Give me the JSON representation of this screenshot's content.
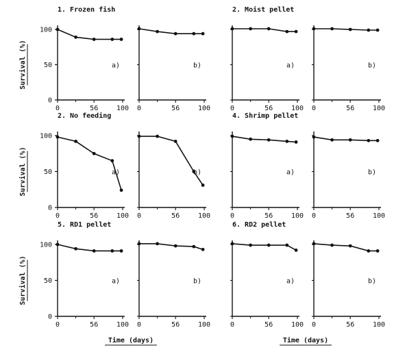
{
  "chart_data": [
    {
      "type": "line",
      "title": "1. Frozen fish",
      "ylabel": "Survival (%)",
      "xlabel": "",
      "xlim": [
        0,
        100
      ],
      "ylim": [
        0,
        100
      ],
      "xticks": [
        "0",
        "56",
        "100"
      ],
      "yticks": [
        "0",
        "50",
        "100"
      ],
      "panels": [
        {
          "label": "a)",
          "x": [
            0,
            28,
            56,
            84,
            98
          ],
          "y": [
            100,
            89,
            86,
            86,
            86
          ]
        },
        {
          "label": "b)",
          "x": [
            0,
            28,
            56,
            84,
            98
          ],
          "y": [
            101,
            97,
            94,
            94,
            94
          ]
        }
      ]
    },
    {
      "type": "line",
      "title": "2. Moist pellet",
      "ylabel": "",
      "xlabel": "",
      "xlim": [
        0,
        100
      ],
      "ylim": [
        0,
        100
      ],
      "xticks": [
        "0",
        "56",
        "100"
      ],
      "yticks": [],
      "panels": [
        {
          "label": "a)",
          "x": [
            0,
            28,
            56,
            84,
            98
          ],
          "y": [
            101,
            101,
            101,
            97,
            97
          ]
        },
        {
          "label": "b)",
          "x": [
            0,
            28,
            56,
            84,
            98
          ],
          "y": [
            101,
            101,
            100,
            99,
            99
          ]
        }
      ]
    },
    {
      "type": "line",
      "title": "2. No feeding",
      "ylabel": "Survival (%)",
      "xlabel": "",
      "xlim": [
        0,
        100
      ],
      "ylim": [
        0,
        100
      ],
      "xticks": [
        "0",
        "56",
        "100"
      ],
      "yticks": [
        "0",
        "50",
        "100"
      ],
      "panels": [
        {
          "label": "a)",
          "x": [
            0,
            28,
            56,
            84,
            98
          ],
          "y": [
            98,
            92,
            75,
            65,
            24
          ]
        },
        {
          "label": "b)",
          "x": [
            0,
            28,
            56,
            84,
            98
          ],
          "y": [
            99,
            99,
            92,
            50,
            31
          ]
        }
      ]
    },
    {
      "type": "line",
      "title": "4. Shrimp pellet",
      "ylabel": "",
      "xlabel": "",
      "xlim": [
        0,
        100
      ],
      "ylim": [
        0,
        100
      ],
      "xticks": [
        "0",
        "56",
        "100"
      ],
      "yticks": [],
      "panels": [
        {
          "label": "a)",
          "x": [
            0,
            28,
            56,
            84,
            98
          ],
          "y": [
            99,
            95,
            94,
            92,
            91
          ]
        },
        {
          "label": "b)",
          "x": [
            0,
            28,
            56,
            84,
            98
          ],
          "y": [
            98,
            94,
            94,
            93,
            93
          ]
        }
      ]
    },
    {
      "type": "line",
      "title": "5. RD1 pellet",
      "ylabel": "Survival (%)",
      "xlabel": "Time (days)",
      "xlim": [
        0,
        100
      ],
      "ylim": [
        0,
        100
      ],
      "xticks": [
        "0",
        "56",
        "100"
      ],
      "yticks": [
        "0",
        "50",
        "100"
      ],
      "panels": [
        {
          "label": "a)",
          "x": [
            0,
            28,
            56,
            84,
            98
          ],
          "y": [
            100,
            94,
            91,
            91,
            91
          ]
        },
        {
          "label": "b)",
          "x": [
            0,
            28,
            56,
            84,
            98
          ],
          "y": [
            101,
            101,
            98,
            97,
            93
          ]
        }
      ]
    },
    {
      "type": "line",
      "title": "6. RD2 pellet",
      "ylabel": "",
      "xlabel": "Time (days)",
      "xlim": [
        0,
        100
      ],
      "ylim": [
        0,
        100
      ],
      "xticks": [
        "0",
        "56",
        "100"
      ],
      "yticks": [],
      "panels": [
        {
          "label": "a)",
          "x": [
            0,
            28,
            56,
            84,
            98
          ],
          "y": [
            101,
            99,
            99,
            99,
            92
          ]
        },
        {
          "label": "b)",
          "x": [
            0,
            28,
            56,
            84,
            98
          ],
          "y": [
            101,
            99,
            98,
            91,
            91
          ]
        }
      ]
    }
  ]
}
